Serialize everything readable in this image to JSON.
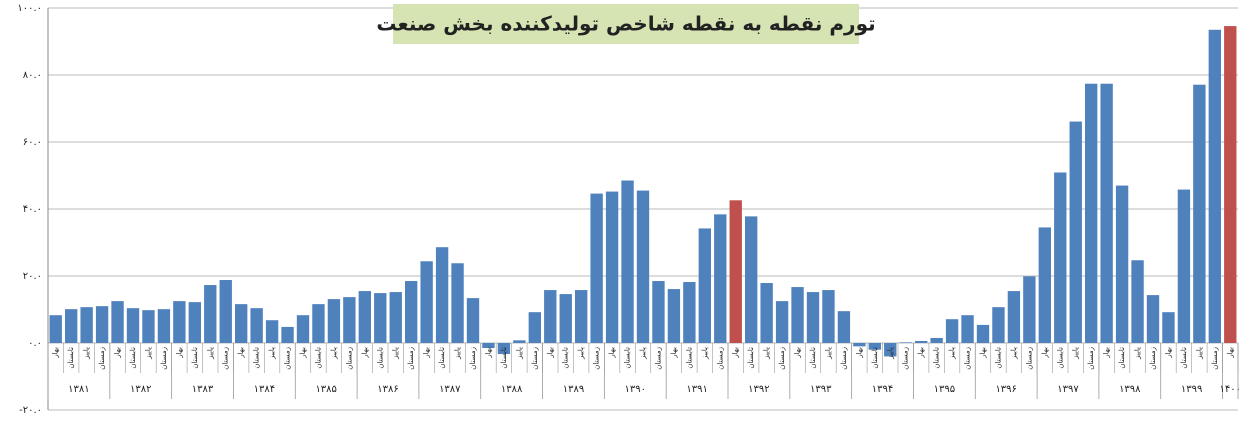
{
  "chart_data": {
    "type": "bar",
    "title": "تورم نقطه به نقطه شاخص تولیدکننده بخش صنعت",
    "categories": [
      "بهار",
      "تابستان",
      "پاییز",
      "زمستان",
      "بهار",
      "تابستان",
      "پاییز",
      "زمستان",
      "بهار",
      "تابستان",
      "پاییز",
      "زمستان",
      "بهار",
      "تابستان",
      "پاییز",
      "زمستان",
      "بهار",
      "تابستان",
      "پاییز",
      "زمستان",
      "بهار",
      "تابستان",
      "پاییز",
      "زمستان",
      "بهار",
      "تابستان",
      "پاییز",
      "زمستان",
      "بهار",
      "تابستان",
      "پاییز",
      "زمستان",
      "بهار",
      "تابستان",
      "پاییز",
      "زمستان",
      "بهار",
      "تابستان",
      "پاییز",
      "زمستان",
      "بهار",
      "تابستان",
      "پاییز",
      "زمستان",
      "بهار",
      "تابستان",
      "پاییز",
      "زمستان",
      "بهار",
      "تابستان",
      "پاییز",
      "زمستان",
      "بهار",
      "تابستان",
      "پاییز",
      "زمستان",
      "بهار",
      "تابستان",
      "پاییز",
      "زمستان",
      "بهار",
      "تابستان",
      "پاییز",
      "زمستان",
      "بهار",
      "تابستان",
      "پاییز",
      "زمستان",
      "بهار",
      "تابستان",
      "پاییز",
      "زمستان",
      "بهار",
      "تابستان",
      "پاییز",
      "زمستان",
      "بهار"
    ],
    "groups": [
      "۱۳۸۱",
      "۱۳۸۲",
      "۱۳۸۳",
      "۱۳۸۴",
      "۱۳۸۵",
      "۱۳۸۶",
      "۱۳۸۷",
      "۱۳۸۸",
      "۱۳۸۹",
      "۱۳۹۰",
      "۱۳۹۱",
      "۱۳۹۲",
      "۱۳۹۳",
      "۱۳۹۴",
      "۱۳۹۵",
      "۱۳۹۶",
      "۱۳۹۷",
      "۱۳۹۸",
      "۱۳۹۹",
      "۱۴۰۰"
    ],
    "values": [
      8.3,
      10.1,
      10.7,
      11,
      12.5,
      10.4,
      9.8,
      10.1,
      12.5,
      12.2,
      17.3,
      18.8,
      11.6,
      10.4,
      6.8,
      4.8,
      8.3,
      11.6,
      13.1,
      13.7,
      15.5,
      14.9,
      15.2,
      18.5,
      24.4,
      28.6,
      23.8,
      13.4,
      -1.5,
      -3.3,
      0.8,
      9.2,
      15.8,
      14.6,
      15.8,
      44.6,
      45.2,
      48.5,
      45.5,
      18.5,
      16.1,
      18.2,
      34.2,
      38.4,
      42.6,
      37.8,
      17.9,
      12.5,
      16.7,
      15.2,
      15.8,
      9.5,
      -1,
      -2,
      -4,
      0.2,
      0.6,
      1.5,
      7.1,
      8.3,
      5.4,
      10.7,
      15.5,
      19.9,
      34.5,
      50.9,
      66.1,
      77.4,
      77.4,
      47,
      24.7,
      14.3,
      9.2,
      45.8,
      77.1,
      93.5,
      94.6
    ],
    "color": "#4f81bd",
    "highlight_color": "#c0504d",
    "highlight": [
      44,
      76
    ],
    "ylim": [
      -20,
      100
    ],
    "yticks": [
      {
        "value": -20,
        "label": "-۲۰.۰"
      },
      {
        "value": 0,
        "label": "۰.۰"
      },
      {
        "value": 20,
        "label": "۲۰.۰"
      },
      {
        "value": 40,
        "label": "۴۰.۰"
      },
      {
        "value": 60,
        "label": "۶۰.۰"
      },
      {
        "value": 80,
        "label": "۸۰.۰"
      },
      {
        "value": 100,
        "label": "۱۰۰.۰"
      }
    ],
    "grid": true
  }
}
